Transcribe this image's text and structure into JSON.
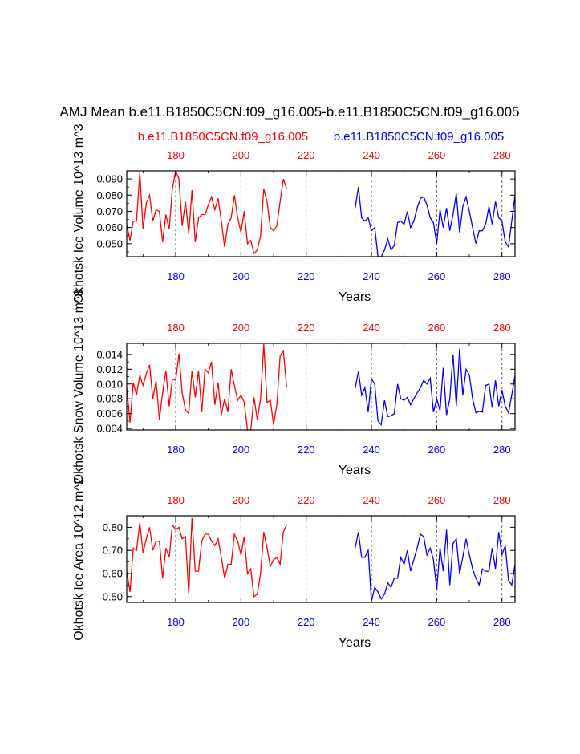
{
  "title": "AMJ Mean b.e11.B1850C5CN.f09_g16.005-b.e11.B1850C5CN.f09_g16.005",
  "legend": {
    "left": "b.e11.B1850C5CN.f09_g16.005",
    "right": "b.e11.B1850C5CN.f09_g16.005"
  },
  "colors": {
    "series_a": "#ff0000",
    "series_b": "#0000ff",
    "axis": "#000000"
  },
  "chart_data": [
    {
      "type": "line",
      "title": "",
      "ylabel": "Okhotsk Ice Volume 10^13 m^3",
      "xlabel": "Years",
      "xlim": [
        165,
        284
      ],
      "ylim": [
        0.042,
        0.095
      ],
      "yticks": [
        0.05,
        0.06,
        0.07,
        0.08,
        0.09
      ],
      "ytick_labels": [
        "0.050",
        "0.060",
        "0.070",
        "0.080",
        "0.090"
      ],
      "xticks": [
        180,
        200,
        220,
        240,
        260,
        280
      ],
      "xtick_labels": [
        "180",
        "200",
        "220",
        "240",
        "260",
        "280"
      ],
      "gridlines_x": [
        180,
        200,
        220,
        240,
        260,
        280
      ],
      "series": [
        {
          "name": "b.e11.B1850C5CN.f09_g16.005",
          "color": "#ff0000",
          "x": [
            165,
            166,
            167,
            168,
            169,
            170,
            171,
            172,
            173,
            174,
            175,
            176,
            177,
            178,
            179,
            180,
            181,
            182,
            183,
            184,
            185,
            186,
            187,
            188,
            189,
            190,
            191,
            192,
            193,
            194,
            195,
            196,
            197,
            198,
            199,
            200,
            201,
            202,
            203,
            204,
            205,
            206,
            207,
            208,
            209,
            210,
            211,
            212,
            213,
            214
          ],
          "values": [
            0.062,
            0.052,
            0.064,
            0.064,
            0.094,
            0.059,
            0.075,
            0.08,
            0.064,
            0.071,
            0.07,
            0.051,
            0.068,
            0.059,
            0.084,
            0.095,
            0.09,
            0.061,
            0.076,
            0.056,
            0.083,
            0.051,
            0.066,
            0.068,
            0.068,
            0.074,
            0.079,
            0.071,
            0.078,
            0.064,
            0.048,
            0.062,
            0.066,
            0.08,
            0.066,
            0.057,
            0.07,
            0.05,
            0.052,
            0.044,
            0.046,
            0.055,
            0.084,
            0.076,
            0.06,
            0.058,
            0.061,
            0.076,
            0.09,
            0.084
          ]
        },
        {
          "name": "b.e11.B1850C5CN.f09_g16.005",
          "color": "#0000ff",
          "x": [
            235,
            236,
            237,
            238,
            239,
            240,
            241,
            242,
            243,
            244,
            245,
            246,
            247,
            248,
            249,
            250,
            251,
            252,
            253,
            254,
            255,
            256,
            257,
            258,
            259,
            260,
            261,
            262,
            263,
            264,
            265,
            266,
            267,
            268,
            269,
            270,
            271,
            272,
            273,
            274,
            275,
            276,
            277,
            278,
            279,
            280,
            281,
            282,
            283,
            284
          ],
          "values": [
            0.072,
            0.085,
            0.066,
            0.064,
            0.066,
            0.058,
            0.06,
            0.042,
            0.042,
            0.046,
            0.053,
            0.046,
            0.049,
            0.063,
            0.064,
            0.062,
            0.07,
            0.06,
            0.064,
            0.072,
            0.078,
            0.079,
            0.074,
            0.066,
            0.063,
            0.05,
            0.071,
            0.06,
            0.072,
            0.058,
            0.068,
            0.081,
            0.057,
            0.073,
            0.079,
            0.07,
            0.06,
            0.05,
            0.058,
            0.058,
            0.062,
            0.073,
            0.062,
            0.076,
            0.066,
            0.064,
            0.051,
            0.048,
            0.064,
            0.08
          ]
        }
      ]
    },
    {
      "type": "line",
      "title": "",
      "ylabel": "Okhotsk Snow Volume 10^13 m^3",
      "xlabel": "Years",
      "xlim": [
        165,
        284
      ],
      "ylim": [
        0.0038,
        0.0155
      ],
      "yticks": [
        0.004,
        0.006,
        0.008,
        0.01,
        0.012,
        0.014
      ],
      "ytick_labels": [
        "0.004",
        "0.006",
        "0.008",
        "0.010",
        "0.012",
        "0.014"
      ],
      "xticks": [
        180,
        200,
        220,
        240,
        260,
        280
      ],
      "xtick_labels": [
        "180",
        "200",
        "220",
        "240",
        "260",
        "280"
      ],
      "gridlines_x": [
        180,
        200,
        220,
        240,
        260,
        280
      ],
      "series": [
        {
          "name": "b.e11.B1850C5CN.f09_g16.005",
          "color": "#ff0000",
          "x": [
            165,
            166,
            167,
            168,
            169,
            170,
            171,
            172,
            173,
            174,
            175,
            176,
            177,
            178,
            179,
            180,
            181,
            182,
            183,
            184,
            185,
            186,
            187,
            188,
            189,
            190,
            191,
            192,
            193,
            194,
            195,
            196,
            197,
            198,
            199,
            200,
            201,
            202,
            203,
            204,
            205,
            206,
            207,
            208,
            209,
            210,
            211,
            212,
            213,
            214
          ],
          "values": [
            0.0095,
            0.0048,
            0.0102,
            0.0085,
            0.0112,
            0.0098,
            0.0114,
            0.0126,
            0.008,
            0.0104,
            0.0052,
            0.0088,
            0.0118,
            0.007,
            0.0107,
            0.0105,
            0.0141,
            0.0088,
            0.0065,
            0.006,
            0.0118,
            0.0082,
            0.0118,
            0.0062,
            0.012,
            0.0115,
            0.013,
            0.0072,
            0.0102,
            0.0058,
            0.008,
            0.0062,
            0.012,
            0.0098,
            0.0078,
            0.0085,
            0.0075,
            0.0038,
            0.0038,
            0.0082,
            0.0052,
            0.008,
            0.0154,
            0.0075,
            0.0078,
            0.0045,
            0.0072,
            0.0138,
            0.0145,
            0.0096
          ]
        },
        {
          "name": "b.e11.B1850C5CN.f09_g16.005",
          "color": "#0000ff",
          "x": [
            235,
            236,
            237,
            238,
            239,
            240,
            241,
            242,
            243,
            244,
            245,
            246,
            247,
            248,
            249,
            250,
            251,
            252,
            253,
            254,
            255,
            256,
            257,
            258,
            259,
            260,
            261,
            262,
            263,
            264,
            265,
            266,
            267,
            268,
            269,
            270,
            271,
            272,
            273,
            274,
            275,
            276,
            277,
            278,
            279,
            280,
            281,
            282,
            283,
            284
          ],
          "values": [
            0.0094,
            0.0117,
            0.0085,
            0.0095,
            0.0062,
            0.0107,
            0.01,
            0.005,
            0.0045,
            0.0078,
            0.0056,
            0.0057,
            0.006,
            0.01,
            0.008,
            0.0078,
            0.0082,
            0.0072,
            0.008,
            0.0088,
            0.0095,
            0.0105,
            0.01,
            0.0108,
            0.0062,
            0.008,
            0.0064,
            0.0122,
            0.0058,
            0.008,
            0.014,
            0.007,
            0.0148,
            0.0085,
            0.012,
            0.0112,
            0.008,
            0.0061,
            0.0063,
            0.0062,
            0.0098,
            0.01,
            0.0068,
            0.0105,
            0.007,
            0.0092,
            0.007,
            0.0061,
            0.0085,
            0.0112
          ]
        }
      ]
    },
    {
      "type": "line",
      "title": "",
      "ylabel": "Okhotsk Ice Area 10^12 m^2",
      "xlabel": "Years",
      "xlim": [
        165,
        284
      ],
      "ylim": [
        0.475,
        0.85
      ],
      "yticks": [
        0.5,
        0.6,
        0.7,
        0.8
      ],
      "ytick_labels": [
        "0.50",
        "0.60",
        "0.70",
        "0.80"
      ],
      "xticks": [
        180,
        200,
        220,
        240,
        260,
        280
      ],
      "xtick_labels": [
        "180",
        "200",
        "220",
        "240",
        "260",
        "280"
      ],
      "gridlines_x": [
        180,
        200,
        220,
        240,
        260,
        280
      ],
      "series": [
        {
          "name": "b.e11.B1850C5CN.f09_g16.005",
          "color": "#ff0000",
          "x": [
            165,
            166,
            167,
            168,
            169,
            170,
            171,
            172,
            173,
            174,
            175,
            176,
            177,
            178,
            179,
            180,
            181,
            182,
            183,
            184,
            185,
            186,
            187,
            188,
            189,
            190,
            191,
            192,
            193,
            194,
            195,
            196,
            197,
            198,
            199,
            200,
            201,
            202,
            203,
            204,
            205,
            206,
            207,
            208,
            209,
            210,
            211,
            212,
            213,
            214
          ],
          "values": [
            0.61,
            0.52,
            0.71,
            0.7,
            0.82,
            0.69,
            0.75,
            0.8,
            0.7,
            0.74,
            0.74,
            0.58,
            0.71,
            0.67,
            0.81,
            0.79,
            0.8,
            0.75,
            0.76,
            0.51,
            0.84,
            0.61,
            0.61,
            0.74,
            0.77,
            0.77,
            0.74,
            0.72,
            0.75,
            0.67,
            0.58,
            0.64,
            0.64,
            0.77,
            0.74,
            0.68,
            0.76,
            0.6,
            0.62,
            0.5,
            0.51,
            0.6,
            0.78,
            0.71,
            0.63,
            0.66,
            0.67,
            0.64,
            0.78,
            0.81
          ]
        },
        {
          "name": "b.e11.B1850C5CN.f09_g16.005",
          "color": "#0000ff",
          "x": [
            235,
            236,
            237,
            238,
            239,
            240,
            241,
            242,
            243,
            244,
            245,
            246,
            247,
            248,
            249,
            250,
            251,
            252,
            253,
            254,
            255,
            256,
            257,
            258,
            259,
            260,
            261,
            262,
            263,
            264,
            265,
            266,
            267,
            268,
            269,
            270,
            271,
            272,
            273,
            274,
            275,
            276,
            277,
            278,
            279,
            280,
            281,
            282,
            283,
            284
          ],
          "values": [
            0.71,
            0.78,
            0.67,
            0.67,
            0.7,
            0.48,
            0.54,
            0.52,
            0.49,
            0.51,
            0.56,
            0.54,
            0.58,
            0.58,
            0.67,
            0.64,
            0.7,
            0.61,
            0.66,
            0.71,
            0.77,
            0.76,
            0.68,
            0.71,
            0.66,
            0.53,
            0.71,
            0.61,
            0.79,
            0.55,
            0.73,
            0.75,
            0.6,
            0.67,
            0.75,
            0.68,
            0.62,
            0.58,
            0.55,
            0.62,
            0.61,
            0.61,
            0.71,
            0.62,
            0.78,
            0.68,
            0.72,
            0.57,
            0.55,
            0.64
          ]
        }
      ]
    }
  ]
}
